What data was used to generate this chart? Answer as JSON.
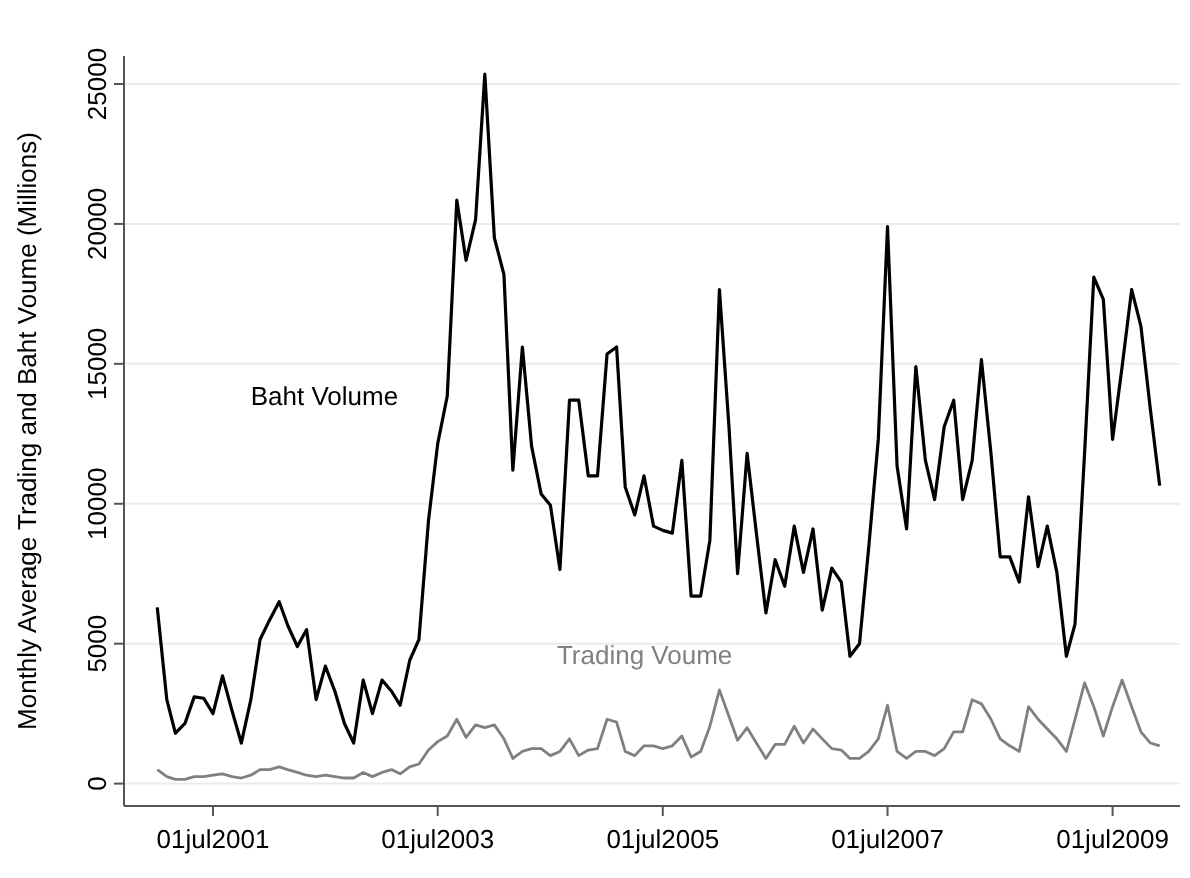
{
  "chart_data": {
    "type": "line",
    "ylabel": "Monthly Average Trading and Baht Voume (Millions)",
    "x": [
      "2001-01",
      "2001-02",
      "2001-03",
      "2001-04",
      "2001-05",
      "2001-06",
      "2001-07",
      "2001-08",
      "2001-09",
      "2001-10",
      "2001-11",
      "2001-12",
      "2002-01",
      "2002-02",
      "2002-03",
      "2002-04",
      "2002-05",
      "2002-06",
      "2002-07",
      "2002-08",
      "2002-09",
      "2002-10",
      "2002-11",
      "2002-12",
      "2003-01",
      "2003-02",
      "2003-03",
      "2003-04",
      "2003-05",
      "2003-06",
      "2003-07",
      "2003-08",
      "2003-09",
      "2003-10",
      "2003-11",
      "2003-12",
      "2004-01",
      "2004-02",
      "2004-03",
      "2004-04",
      "2004-05",
      "2004-06",
      "2004-07",
      "2004-08",
      "2004-09",
      "2004-10",
      "2004-11",
      "2004-12",
      "2005-01",
      "2005-02",
      "2005-03",
      "2005-04",
      "2005-05",
      "2005-06",
      "2005-07",
      "2005-08",
      "2005-09",
      "2005-10",
      "2005-11",
      "2005-12",
      "2006-01",
      "2006-02",
      "2006-03",
      "2006-04",
      "2006-05",
      "2006-06",
      "2006-07",
      "2006-08",
      "2006-09",
      "2006-10",
      "2006-11",
      "2006-12",
      "2007-01",
      "2007-02",
      "2007-03",
      "2007-04",
      "2007-05",
      "2007-06",
      "2007-07",
      "2007-08",
      "2007-09",
      "2007-10",
      "2007-11",
      "2007-12",
      "2008-01",
      "2008-02",
      "2008-03",
      "2008-04",
      "2008-05",
      "2008-06",
      "2008-07",
      "2008-08",
      "2008-09",
      "2008-10",
      "2008-11",
      "2008-12",
      "2009-01",
      "2009-02",
      "2009-03",
      "2009-04",
      "2009-05",
      "2009-06",
      "2009-07",
      "2009-08",
      "2009-09",
      "2009-10",
      "2009-11",
      "2009-12"
    ],
    "series": [
      {
        "name": "Baht Volume",
        "color": "#000000",
        "values": [
          6300,
          3000,
          1800,
          2150,
          3100,
          3050,
          2500,
          3850,
          2600,
          1450,
          3000,
          5150,
          5850,
          6500,
          5650,
          4900,
          5500,
          3000,
          4200,
          3300,
          2150,
          1450,
          3700,
          2500,
          3700,
          3300,
          2800,
          4400,
          5150,
          9400,
          12150,
          13850,
          20850,
          18700,
          20150,
          25350,
          19500,
          18200,
          11200,
          15600,
          12050,
          10350,
          9950,
          7650,
          13700,
          13700,
          11000,
          11000,
          15350,
          15600,
          10600,
          9600,
          11000,
          9200,
          9050,
          8950,
          11550,
          6700,
          6700,
          8700,
          17650,
          12750,
          7500,
          11800,
          8950,
          6100,
          8000,
          7050,
          9200,
          7550,
          9100,
          6200,
          7700,
          7200,
          4550,
          5000,
          8450,
          12300,
          19900,
          11350,
          9100,
          14900,
          11550,
          10150,
          12750,
          13700,
          10150,
          11550,
          15150,
          11800,
          8100,
          8100,
          7200,
          10250,
          7750,
          9200,
          7550,
          4550,
          5700,
          11800,
          18100,
          17300,
          12300,
          14900,
          17650,
          16350,
          13350,
          10650
        ]
      },
      {
        "name": "Trading Voume",
        "color": "#808080",
        "values": [
          500,
          250,
          150,
          150,
          250,
          250,
          300,
          350,
          250,
          200,
          300,
          500,
          500,
          600,
          500,
          400,
          300,
          250,
          300,
          250,
          200,
          200,
          400,
          250,
          400,
          500,
          350,
          600,
          700,
          1200,
          1500,
          1700,
          2300,
          1650,
          2100,
          2000,
          2100,
          1600,
          900,
          1150,
          1250,
          1250,
          1000,
          1150,
          1600,
          1000,
          1200,
          1250,
          2300,
          2200,
          1150,
          1000,
          1350,
          1350,
          1250,
          1350,
          1700,
          950,
          1150,
          2050,
          3350,
          2400,
          1550,
          2000,
          1450,
          900,
          1400,
          1400,
          2050,
          1450,
          1950,
          1600,
          1250,
          1200,
          900,
          900,
          1150,
          1600,
          2800,
          1150,
          900,
          1150,
          1150,
          1000,
          1250,
          1850,
          1850,
          3000,
          2850,
          2300,
          1600,
          1350,
          1150,
          2750,
          2300,
          1950,
          1600,
          1150,
          2300,
          3600,
          2750,
          1700,
          2750,
          3700,
          2750,
          1850,
          1450,
          1350
        ]
      }
    ],
    "xlim": [
      "2000-09-15",
      "2010-02-05"
    ],
    "xticks": [
      {
        "value": "2001-07-01",
        "label": "01jul2001"
      },
      {
        "value": "2003-07-01",
        "label": "01jul2003"
      },
      {
        "value": "2005-07-01",
        "label": "01jul2005"
      },
      {
        "value": "2007-07-01",
        "label": "01jul2007"
      },
      {
        "value": "2009-07-01",
        "label": "01jul2009"
      }
    ],
    "ylim": [
      -800,
      26000
    ],
    "yticks": [
      0,
      5000,
      10000,
      15000,
      20000,
      25000
    ],
    "grid": "y",
    "legend": false,
    "marker": "none",
    "line_style": "solid"
  }
}
